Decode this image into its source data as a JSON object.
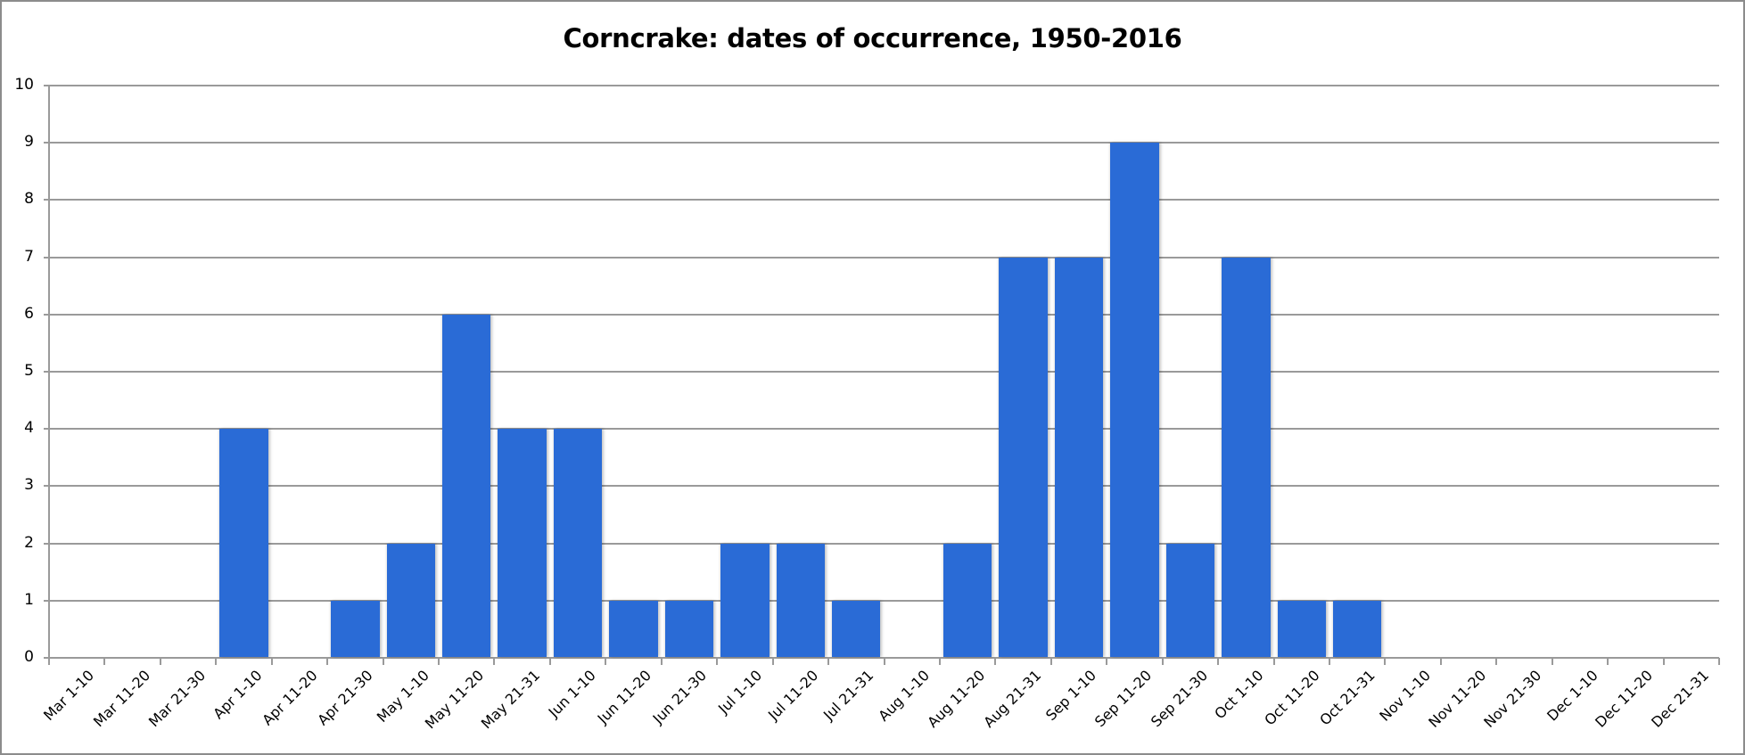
{
  "chart_data": {
    "type": "bar",
    "title": "Corncrake: dates of occurrence, 1950-2016",
    "xlabel": "",
    "ylabel": "",
    "ylim": [
      0,
      10
    ],
    "yticks": [
      0,
      1,
      2,
      3,
      4,
      5,
      6,
      7,
      8,
      9,
      10
    ],
    "grid": true,
    "legend": null,
    "bar_color": "#2a6bd6",
    "categories": [
      "Mar 1-10",
      "Mar 11-20",
      "Mar 21-30",
      "Apr 1-10",
      "Apr 11-20",
      "Apr 21-30",
      "May 1-10",
      "May 11-20",
      "May 21-31",
      "Jun 1-10",
      "Jun 11-20",
      "Jun 21-30",
      "Jul 1-10",
      "Jul 11-20",
      "Jul 21-31",
      "Aug 1-10",
      "Aug 11-20",
      "Aug 21-31",
      "Sep 1-10",
      "Sep 11-20",
      "Sep 21-30",
      "Oct 1-10",
      "Oct 11-20",
      "Oct 21-31",
      "Nov 1-10",
      "Nov 11-20",
      "Nov 21-30",
      "Dec 1-10",
      "Dec 11-20",
      "Dec 21-31"
    ],
    "values": [
      0,
      0,
      0,
      4,
      0,
      1,
      2,
      6,
      4,
      4,
      1,
      1,
      2,
      2,
      1,
      0,
      2,
      7,
      7,
      9,
      2,
      7,
      1,
      1,
      0,
      0,
      0,
      0,
      0,
      0
    ]
  }
}
